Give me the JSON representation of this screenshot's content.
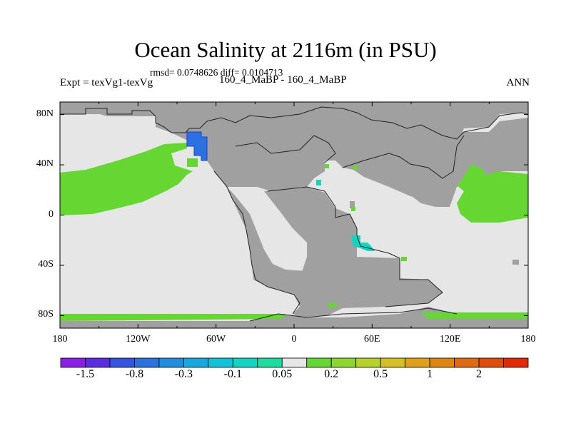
{
  "chart_data": {
    "type": "heatmap",
    "title": "Ocean Salinity at 2116m (in PSU)",
    "stats": "rmsd= 0.0748626 diff= 0.0104713",
    "left_label": "Expt = texVg1-texVg",
    "center_label": "160_4_MaBP - 160_4_MaBP",
    "right_label": "ANN",
    "xlabel": "",
    "ylabel": "",
    "xlim": [
      -180,
      180
    ],
    "ylim": [
      -90,
      90
    ],
    "x_ticks": [
      {
        "value": -180,
        "label": "180"
      },
      {
        "value": -120,
        "label": "120W"
      },
      {
        "value": -60,
        "label": "60W"
      },
      {
        "value": 0,
        "label": "0"
      },
      {
        "value": 60,
        "label": "60E"
      },
      {
        "value": 120,
        "label": "120E"
      },
      {
        "value": 180,
        "label": "180"
      }
    ],
    "y_ticks": [
      {
        "value": 80,
        "label": "80N"
      },
      {
        "value": 40,
        "label": "40N"
      },
      {
        "value": 0,
        "label": "0"
      },
      {
        "value": -40,
        "label": "40S"
      },
      {
        "value": -80,
        "label": "80S"
      }
    ],
    "colorbar": {
      "labels": [
        {
          "boundary": 1,
          "text": "-1.5"
        },
        {
          "boundary": 3,
          "text": "-0.8"
        },
        {
          "boundary": 5,
          "text": "-0.3"
        },
        {
          "boundary": 7,
          "text": "-0.1"
        },
        {
          "boundary": 9,
          "text": "0.05"
        },
        {
          "boundary": 11,
          "text": "0.2"
        },
        {
          "boundary": 13,
          "text": "0.5"
        },
        {
          "boundary": 15,
          "text": "1"
        },
        {
          "boundary": 17,
          "text": "2"
        }
      ],
      "colors": [
        "#8a1fe6",
        "#5a2ee0",
        "#3554e0",
        "#2b72e0",
        "#1f8ee0",
        "#17a8e0",
        "#12c2d8",
        "#12d4c0",
        "#1cdca0",
        "#e6e6e6",
        "#66d633",
        "#8ed62e",
        "#b4d22a",
        "#d4c022",
        "#e0a018",
        "#e08414",
        "#e06a10",
        "#e04c0c",
        "#e02a08"
      ]
    },
    "background_value_label": "0.05",
    "land_color": "#a0a0a0",
    "regions": [
      {
        "name": "North Pacific positive anomaly",
        "level": "0.05–0.2",
        "color": "#66d633",
        "lon": [
          -180,
          -115
        ],
        "lat": [
          0,
          30
        ]
      },
      {
        "name": "Western Pacific positive anomaly",
        "level": "0.05–0.2",
        "color": "#66d633",
        "lon": [
          135,
          180
        ],
        "lat": [
          -5,
          30
        ]
      },
      {
        "name": "Southern Ocean positive anomaly",
        "level": "0.05–0.2",
        "color": "#66d633",
        "lon": [
          -180,
          180
        ],
        "lat": [
          -83,
          -77
        ]
      },
      {
        "name": "Northeast Pacific negative anomaly",
        "level": "-0.8 to -0.3",
        "color": "#2b72e0",
        "lon": [
          -78,
          -65
        ],
        "lat": [
          38,
          50
        ]
      },
      {
        "name": "Tethys negative anomaly",
        "level": "-0.1 to 0.05",
        "color": "#12d4c0",
        "lon": [
          45,
          60
        ],
        "lat": [
          -30,
          -20
        ]
      }
    ]
  }
}
